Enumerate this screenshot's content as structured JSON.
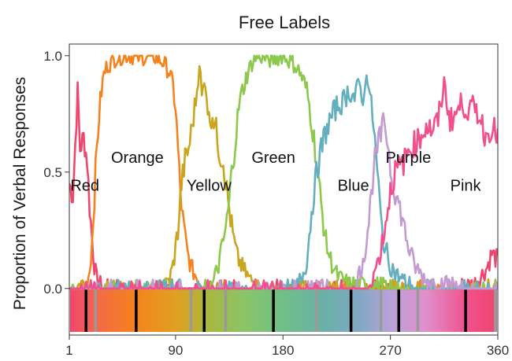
{
  "chart_data": {
    "type": "line",
    "title": "Free Labels",
    "xlabel": "",
    "ylabel": "Proportion of Verbal Responses",
    "xlim": [
      1,
      360
    ],
    "ylim": [
      -0.2,
      1.05
    ],
    "xticks": [
      {
        "value": 1,
        "label": "1"
      },
      {
        "value": 90,
        "label": "90"
      },
      {
        "value": 180,
        "label": "180"
      },
      {
        "value": 270,
        "label": "270"
      },
      {
        "value": 360,
        "label": "360"
      }
    ],
    "yticks": [
      {
        "value": 0.0,
        "label": "0.0"
      },
      {
        "value": 0.5,
        "label": "0.5"
      },
      {
        "value": 1.0,
        "label": "1.0"
      }
    ],
    "grid": false,
    "legend": "none",
    "series": [
      {
        "name": "Red",
        "color": "#f0466e",
        "x": [
          1,
          4,
          8,
          10,
          13,
          16,
          18,
          20,
          22,
          24,
          27,
          30,
          35,
          40,
          60,
          100,
          200,
          300,
          340,
          350,
          355,
          360
        ],
        "y": [
          0.45,
          0.4,
          0.85,
          0.6,
          0.65,
          0.55,
          0.35,
          0.22,
          0.1,
          0.04,
          0.02,
          0.01,
          0.01,
          0.0,
          0.0,
          0.0,
          0.0,
          0.0,
          0.02,
          0.08,
          0.15,
          0.12
        ]
      },
      {
        "name": "Orange",
        "color": "#f5821e",
        "x": [
          1,
          15,
          18,
          20,
          22,
          24,
          26,
          28,
          30,
          33,
          36,
          40,
          50,
          60,
          70,
          80,
          85,
          88,
          90,
          92,
          94,
          96,
          98,
          100,
          104,
          110,
          120,
          200,
          360
        ],
        "y": [
          0.0,
          0.0,
          0.08,
          0.2,
          0.4,
          0.6,
          0.75,
          0.85,
          0.92,
          0.96,
          0.97,
          0.99,
          1.0,
          0.99,
          1.0,
          0.97,
          0.93,
          0.86,
          0.78,
          0.6,
          0.42,
          0.3,
          0.22,
          0.15,
          0.08,
          0.03,
          0.01,
          0.0,
          0.0
        ]
      },
      {
        "name": "Yellow",
        "color": "#c8a61e",
        "x": [
          1,
          80,
          85,
          88,
          92,
          95,
          98,
          101,
          104,
          108,
          110,
          112,
          115,
          118,
          121,
          124,
          127,
          130,
          133,
          136,
          139,
          142,
          147,
          152,
          160,
          360
        ],
        "y": [
          0.0,
          0.0,
          0.04,
          0.1,
          0.25,
          0.45,
          0.55,
          0.6,
          0.7,
          0.85,
          0.98,
          0.82,
          0.9,
          0.72,
          0.75,
          0.68,
          0.58,
          0.55,
          0.42,
          0.3,
          0.2,
          0.13,
          0.08,
          0.04,
          0.01,
          0.0
        ]
      },
      {
        "name": "Green",
        "color": "#8cc84b",
        "x": [
          1,
          120,
          126,
          130,
          134,
          137,
          140,
          143,
          146,
          150,
          155,
          160,
          170,
          180,
          190,
          195,
          200,
          204,
          207,
          210,
          213,
          216,
          220,
          226,
          235,
          360
        ],
        "y": [
          0.0,
          0.0,
          0.1,
          0.2,
          0.32,
          0.5,
          0.63,
          0.78,
          0.85,
          0.92,
          0.98,
          1.0,
          0.98,
          1.0,
          0.96,
          0.92,
          0.85,
          0.72,
          0.6,
          0.45,
          0.32,
          0.2,
          0.12,
          0.05,
          0.02,
          0.0
        ]
      },
      {
        "name": "Blue",
        "color": "#64afbe",
        "x": [
          1,
          190,
          196,
          200,
          203,
          206,
          210,
          215,
          220,
          225,
          230,
          235,
          240,
          244,
          248,
          250,
          253,
          256,
          259,
          262,
          265,
          270,
          275,
          282,
          290,
          360
        ],
        "y": [
          0.0,
          0.0,
          0.05,
          0.12,
          0.28,
          0.42,
          0.55,
          0.66,
          0.73,
          0.78,
          0.8,
          0.85,
          0.82,
          0.88,
          0.8,
          0.95,
          0.82,
          0.7,
          0.5,
          0.3,
          0.18,
          0.1,
          0.06,
          0.03,
          0.01,
          0.0
        ]
      },
      {
        "name": "Purple",
        "color": "#c39bd2",
        "x": [
          1,
          240,
          245,
          250,
          253,
          256,
          259,
          262,
          265,
          268,
          271,
          275,
          280,
          285,
          290,
          300,
          360
        ],
        "y": [
          0.0,
          0.0,
          0.08,
          0.2,
          0.35,
          0.52,
          0.6,
          0.66,
          0.72,
          0.62,
          0.48,
          0.4,
          0.3,
          0.18,
          0.1,
          0.03,
          0.0
        ]
      },
      {
        "name": "Pink",
        "color": "#f0508c",
        "x": [
          1,
          250,
          255,
          260,
          265,
          268,
          270,
          274,
          278,
          282,
          286,
          290,
          295,
          300,
          305,
          310,
          315,
          320,
          325,
          330,
          335,
          340,
          345,
          350,
          355,
          360
        ],
        "y": [
          0.0,
          0.0,
          0.05,
          0.12,
          0.25,
          0.35,
          0.42,
          0.5,
          0.52,
          0.55,
          0.6,
          0.62,
          0.65,
          0.7,
          0.68,
          0.72,
          0.88,
          0.72,
          0.75,
          0.8,
          0.76,
          0.78,
          0.74,
          0.65,
          0.7,
          0.65
        ]
      }
    ],
    "annotations": [
      {
        "text": "Red",
        "x": 14,
        "y": 0.42
      },
      {
        "text": "Orange",
        "x": 58,
        "y": 0.54
      },
      {
        "text": "Yellow",
        "x": 118,
        "y": 0.42
      },
      {
        "text": "Green",
        "x": 172,
        "y": 0.54
      },
      {
        "text": "Blue",
        "x": 239,
        "y": 0.42
      },
      {
        "text": "Purple",
        "x": 285,
        "y": 0.54
      },
      {
        "text": "Pink",
        "x": 333,
        "y": 0.42
      }
    ],
    "hue_strip": {
      "stops": [
        {
          "x": 1,
          "color": "#f0466e"
        },
        {
          "x": 25,
          "color": "#f36b45"
        },
        {
          "x": 55,
          "color": "#f5821e"
        },
        {
          "x": 90,
          "color": "#e0a020"
        },
        {
          "x": 118,
          "color": "#a8b840"
        },
        {
          "x": 150,
          "color": "#88c56a"
        },
        {
          "x": 180,
          "color": "#6fbf88"
        },
        {
          "x": 215,
          "color": "#6ab0a8"
        },
        {
          "x": 245,
          "color": "#82a8c4"
        },
        {
          "x": 270,
          "color": "#b8a2d8"
        },
        {
          "x": 300,
          "color": "#e090cc"
        },
        {
          "x": 335,
          "color": "#f0508c"
        },
        {
          "x": 360,
          "color": "#f0466e"
        }
      ],
      "black_markers": [
        15,
        57,
        114,
        172,
        237,
        277,
        333
      ],
      "gray_markers": [
        23,
        103,
        132,
        208,
        262,
        293,
        358
      ]
    }
  }
}
